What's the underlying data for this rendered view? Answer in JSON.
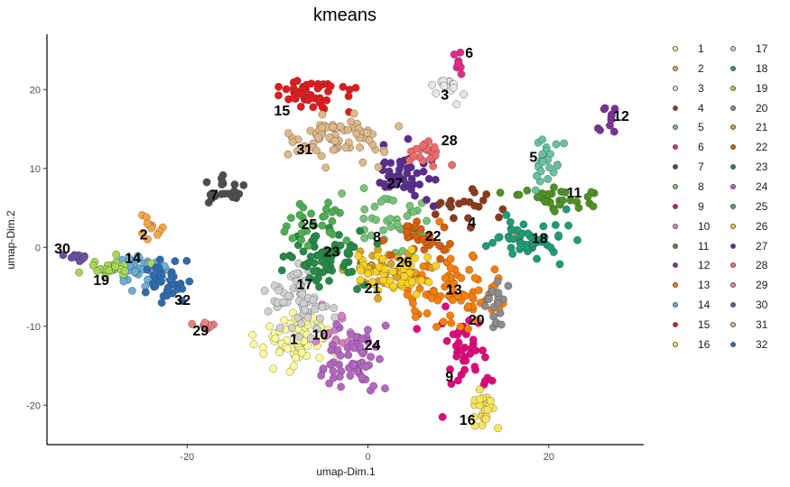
{
  "chart_data": {
    "type": "scatter",
    "title": "kmeans",
    "xlabel": "umap-Dim.1",
    "ylabel": "umap-Dim.2",
    "xlim": [
      -35.5,
      30.5
    ],
    "ylim": [
      -25,
      27
    ],
    "xticks": [
      -20,
      0,
      20
    ],
    "yticks": [
      -20,
      -10,
      0,
      10,
      20
    ],
    "grid": false,
    "legend_position": "right",
    "clusters": [
      {
        "id": "1",
        "color": "#FFFF99",
        "center": [
          -8,
          -12
        ],
        "spread": [
          2.2,
          2.2
        ],
        "n": 70
      },
      {
        "id": "2",
        "color": "#F9A646",
        "center": [
          -24,
          2.5
        ],
        "spread": [
          0.6,
          0.8
        ],
        "n": 12
      },
      {
        "id": "3",
        "color": "#E6E6E6",
        "center": [
          9,
          20
        ],
        "spread": [
          1.0,
          1.0
        ],
        "n": 18
      },
      {
        "id": "4",
        "color": "#8B3A1A",
        "center": [
          11,
          5
        ],
        "spread": [
          1.5,
          1.2
        ],
        "n": 20
      },
      {
        "id": "5",
        "color": "#66C2A5",
        "center": [
          20,
          11
        ],
        "spread": [
          0.8,
          1.8
        ],
        "n": 25
      },
      {
        "id": "6",
        "color": "#E7298A",
        "center": [
          10,
          23.5
        ],
        "spread": [
          0.3,
          0.8
        ],
        "n": 8
      },
      {
        "id": "7",
        "color": "#4D4D4D",
        "center": [
          -16,
          7
        ],
        "spread": [
          1.3,
          0.8
        ],
        "n": 22
      },
      {
        "id": "8",
        "color": "#74C476",
        "center": [
          3,
          3
        ],
        "spread": [
          2.0,
          2.0
        ],
        "n": 40
      },
      {
        "id": "9",
        "color": "#E6007E",
        "center": [
          11,
          -14
        ],
        "spread": [
          1.4,
          2.5
        ],
        "n": 40
      },
      {
        "id": "10",
        "color": "#D882C4",
        "center": [
          -4,
          -11
        ],
        "spread": [
          1.2,
          1.2
        ],
        "n": 15
      },
      {
        "id": "11",
        "color": "#4D9221",
        "center": [
          21,
          6
        ],
        "spread": [
          2.0,
          0.8
        ],
        "n": 30
      },
      {
        "id": "12",
        "color": "#7B3294",
        "center": [
          26,
          15.5
        ],
        "spread": [
          0.6,
          1.0
        ],
        "n": 10
      },
      {
        "id": "13",
        "color": "#FF7F00",
        "center": [
          9,
          -5
        ],
        "spread": [
          3.0,
          2.5
        ],
        "n": 90
      },
      {
        "id": "14",
        "color": "#6BAED6",
        "center": [
          -25,
          -3
        ],
        "spread": [
          1.6,
          1.0
        ],
        "n": 40
      },
      {
        "id": "15",
        "color": "#E31A1C",
        "center": [
          -6,
          19.5
        ],
        "spread": [
          2.3,
          1.0
        ],
        "n": 45
      },
      {
        "id": "16",
        "color": "#FFE55C",
        "center": [
          12.5,
          -20.5
        ],
        "spread": [
          0.7,
          1.3
        ],
        "n": 25
      },
      {
        "id": "17",
        "color": "#D0D0D0",
        "center": [
          -7.5,
          -6.5
        ],
        "spread": [
          1.8,
          2.5
        ],
        "n": 60
      },
      {
        "id": "18",
        "color": "#1B9E77",
        "center": [
          17.5,
          1
        ],
        "spread": [
          2.0,
          1.3
        ],
        "n": 50
      },
      {
        "id": "19",
        "color": "#A6D854",
        "center": [
          -29,
          -2.5
        ],
        "spread": [
          1.6,
          0.5
        ],
        "n": 25
      },
      {
        "id": "20",
        "color": "#8C8C8C",
        "center": [
          14,
          -7
        ],
        "spread": [
          0.7,
          1.4
        ],
        "n": 18
      },
      {
        "id": "21",
        "color": "#DAA520",
        "center": [
          1.5,
          -3
        ],
        "spread": [
          1.8,
          1.2
        ],
        "n": 40
      },
      {
        "id": "22",
        "color": "#D95F02",
        "center": [
          6,
          1
        ],
        "spread": [
          1.5,
          1.0
        ],
        "n": 30
      },
      {
        "id": "23",
        "color": "#238B45",
        "center": [
          -4.5,
          -1.5
        ],
        "spread": [
          2.4,
          1.8
        ],
        "n": 70
      },
      {
        "id": "24",
        "color": "#B565C2",
        "center": [
          -1.5,
          -14
        ],
        "spread": [
          1.4,
          2.4
        ],
        "n": 60
      },
      {
        "id": "25",
        "color": "#4CAF50",
        "center": [
          -5,
          3
        ],
        "spread": [
          1.5,
          1.6
        ],
        "n": 30
      },
      {
        "id": "26",
        "color": "#FFD21F",
        "center": [
          3,
          -3
        ],
        "spread": [
          2.3,
          1.3
        ],
        "n": 55
      },
      {
        "id": "27",
        "color": "#5B2C8F",
        "center": [
          4,
          9.5
        ],
        "spread": [
          1.6,
          1.5
        ],
        "n": 45
      },
      {
        "id": "28",
        "color": "#F26B6B",
        "center": [
          7,
          12
        ],
        "spread": [
          1.3,
          0.8
        ],
        "n": 20
      },
      {
        "id": "29",
        "color": "#F08080",
        "center": [
          -18,
          -10
        ],
        "spread": [
          0.6,
          0.8
        ],
        "n": 10
      },
      {
        "id": "30",
        "color": "#6A51A3",
        "center": [
          -32,
          -1
        ],
        "spread": [
          0.8,
          0.4
        ],
        "n": 10
      },
      {
        "id": "31",
        "color": "#DEB887",
        "center": [
          -4,
          14
        ],
        "spread": [
          2.4,
          1.5
        ],
        "n": 75
      },
      {
        "id": "32",
        "color": "#2B6CB0",
        "center": [
          -22,
          -4.5
        ],
        "spread": [
          1.3,
          1.3
        ],
        "n": 40
      }
    ],
    "cluster_labels": [
      {
        "text": "1",
        "x": -8.2,
        "y": -11.8
      },
      {
        "text": "2",
        "x": -24.8,
        "y": 1.5
      },
      {
        "text": "3",
        "x": 8.5,
        "y": 19.2
      },
      {
        "text": "4",
        "x": 11.5,
        "y": 3.0
      },
      {
        "text": "5",
        "x": 18.3,
        "y": 11.3
      },
      {
        "text": "6",
        "x": 11.2,
        "y": 24.5
      },
      {
        "text": "7",
        "x": -17.0,
        "y": 6.5
      },
      {
        "text": "8",
        "x": 1.0,
        "y": 1.2
      },
      {
        "text": "9",
        "x": 9.0,
        "y": -16.5
      },
      {
        "text": "10",
        "x": -5.3,
        "y": -11.2
      },
      {
        "text": "11",
        "x": 22.8,
        "y": 6.8
      },
      {
        "text": "12",
        "x": 28.0,
        "y": 16.5
      },
      {
        "text": "13",
        "x": 9.5,
        "y": -5.5
      },
      {
        "text": "14",
        "x": -26.0,
        "y": -1.5
      },
      {
        "text": "15",
        "x": -9.5,
        "y": 17.2
      },
      {
        "text": "16",
        "x": 11.0,
        "y": -22.0
      },
      {
        "text": "17",
        "x": -7.0,
        "y": -4.8
      },
      {
        "text": "18",
        "x": 19.0,
        "y": 1.0
      },
      {
        "text": "19",
        "x": -29.5,
        "y": -4.3
      },
      {
        "text": "20",
        "x": 12.0,
        "y": -9.3
      },
      {
        "text": "21",
        "x": 0.5,
        "y": -5.3
      },
      {
        "text": "22",
        "x": 7.2,
        "y": 1.3
      },
      {
        "text": "23",
        "x": -4.0,
        "y": -0.7
      },
      {
        "text": "24",
        "x": 0.5,
        "y": -12.5
      },
      {
        "text": "25",
        "x": -6.5,
        "y": 2.8
      },
      {
        "text": "26",
        "x": 4.0,
        "y": -2.0
      },
      {
        "text": "27",
        "x": 3.0,
        "y": 8.0
      },
      {
        "text": "28",
        "x": 9.0,
        "y": 13.4
      },
      {
        "text": "29",
        "x": -18.5,
        "y": -10.7
      },
      {
        "text": "30",
        "x": -33.8,
        "y": -0.3
      },
      {
        "text": "31",
        "x": -7.0,
        "y": 12.3
      },
      {
        "text": "32",
        "x": -20.5,
        "y": -6.8
      }
    ]
  }
}
